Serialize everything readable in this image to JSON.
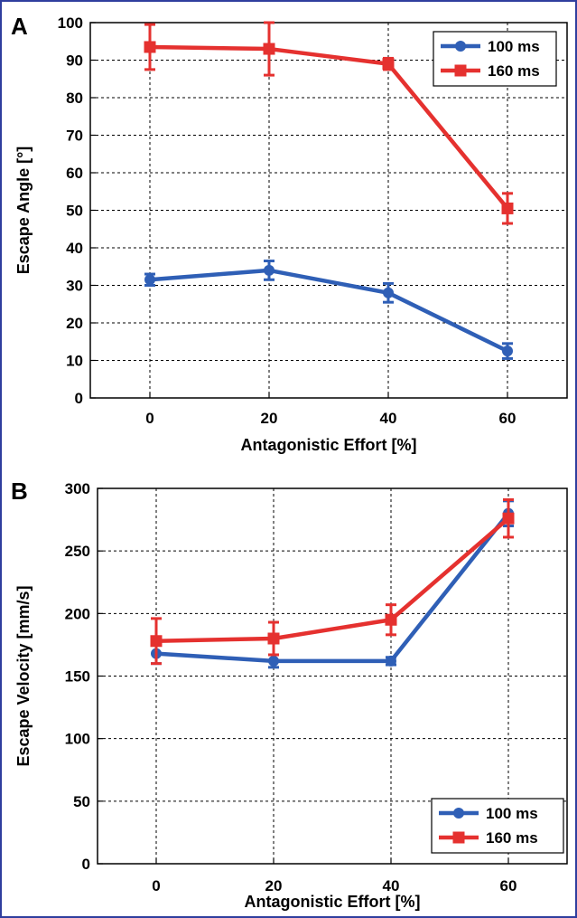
{
  "chart_data": [
    {
      "panel_label": "A",
      "type": "line",
      "categories": [
        "0",
        "20",
        "40",
        "60"
      ],
      "x": [
        0,
        20,
        40,
        60
      ],
      "xlabel": "Antagonistic Effort [%]",
      "ylabel": "Escape Angle [°]",
      "xlim": [
        -10,
        70
      ],
      "ylim": [
        0,
        100
      ],
      "yticks": [
        0,
        10,
        20,
        30,
        40,
        50,
        60,
        70,
        80,
        90,
        100
      ],
      "grid": true,
      "legend_position": "top-right",
      "series": [
        {
          "name": "100 ms",
          "color": "#2f5fb6",
          "marker": "circle",
          "values": [
            31.5,
            34,
            28,
            12.5
          ],
          "errors": [
            1.5,
            2.5,
            2.5,
            2
          ]
        },
        {
          "name": "160 ms",
          "color": "#e5312f",
          "marker": "square",
          "values": [
            93.5,
            93,
            89,
            50.5
          ],
          "errors": [
            6,
            7,
            1.5,
            4
          ]
        }
      ]
    },
    {
      "panel_label": "B",
      "type": "line",
      "categories": [
        "0",
        "20",
        "40",
        "60"
      ],
      "x": [
        0,
        20,
        40,
        60
      ],
      "xlabel": "Antagonistic Effort [%]",
      "ylabel": "Escape Velocity [mm/s]",
      "xlim": [
        -10,
        70
      ],
      "ylim": [
        0,
        300
      ],
      "yticks": [
        0,
        50,
        100,
        150,
        200,
        250,
        300
      ],
      "grid": true,
      "legend_position": "bottom-right",
      "series": [
        {
          "name": "100 ms",
          "color": "#2f5fb6",
          "marker": "circle",
          "values": [
            168,
            162,
            162,
            280
          ],
          "errors": [
            8,
            5,
            3,
            10
          ]
        },
        {
          "name": "160 ms",
          "color": "#e5312f",
          "marker": "square",
          "values": [
            178,
            180,
            195,
            276
          ],
          "errors": [
            18,
            13,
            12,
            15
          ]
        }
      ]
    }
  ]
}
